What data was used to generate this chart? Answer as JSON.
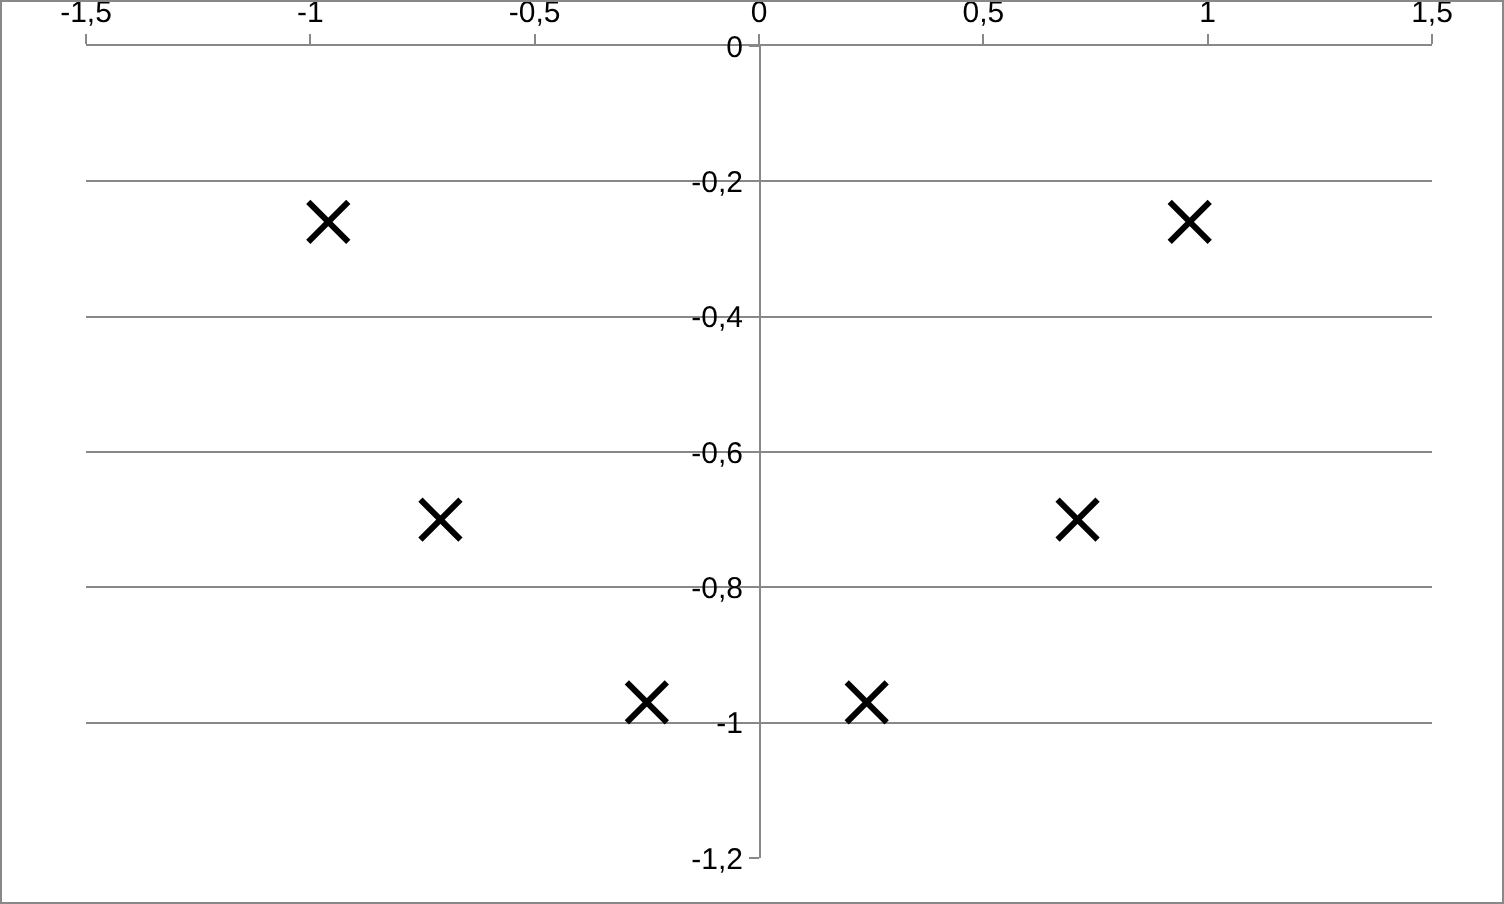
{
  "chart_data": {
    "type": "scatter",
    "x": [
      -0.96,
      -0.71,
      -0.25,
      0.24,
      0.71,
      0.96
    ],
    "series": [
      {
        "color": "#000000",
        "values": [
          -0.26,
          -0.7,
          -0.97,
          -0.97,
          -0.7,
          -0.26
        ]
      }
    ],
    "xlim": [
      -1.5,
      1.5
    ],
    "xticks": [
      {
        "value": -1.5,
        "label": "-1,5"
      },
      {
        "value": -1,
        "label": "-1"
      },
      {
        "value": -0.5,
        "label": "-0,5"
      },
      {
        "value": 0,
        "label": "0"
      },
      {
        "value": 0.5,
        "label": "0,5"
      },
      {
        "value": 1,
        "label": "1"
      },
      {
        "value": 1.5,
        "label": "1,5"
      }
    ],
    "ylim": [
      -1.2,
      0
    ],
    "yticks": [
      {
        "value": -1.2,
        "label": "-1,2"
      },
      {
        "value": -1,
        "label": "-1"
      },
      {
        "value": -0.8,
        "label": "-0,8"
      },
      {
        "value": -0.6,
        "label": "-0,6"
      },
      {
        "value": -0.4,
        "label": "-0,4"
      },
      {
        "value": -0.2,
        "label": "-0,2"
      },
      {
        "value": 0,
        "label": "0"
      }
    ],
    "grid": "y",
    "marker": "cross"
  }
}
